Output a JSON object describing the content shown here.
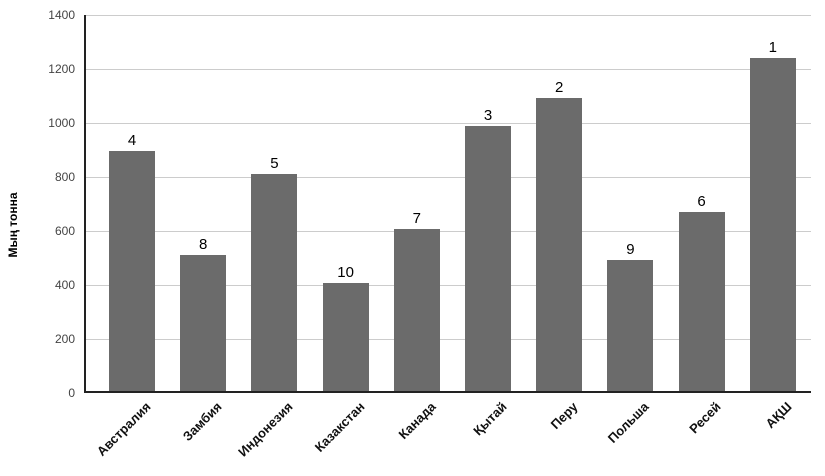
{
  "chart_data": {
    "type": "bar",
    "title": "",
    "xlabel": "",
    "ylabel": "Мың тонна",
    "categories": [
      "Австралия",
      "Замбия",
      "Индонезия",
      "Казакстан",
      "Канада",
      "Қытай",
      "Перу",
      "Польша",
      "Ресей",
      "АҚШ"
    ],
    "values": [
      890,
      505,
      805,
      400,
      600,
      980,
      1085,
      485,
      665,
      1235
    ],
    "point_labels": [
      "4",
      "8",
      "5",
      "10",
      "7",
      "3",
      "2",
      "9",
      "6",
      "1"
    ],
    "ylim": [
      0,
      1400
    ],
    "yticks": [
      0,
      200,
      400,
      600,
      800,
      1000,
      1200,
      1400
    ],
    "grid": true,
    "legend": "none",
    "colors": {
      "bar": "#6b6b6b",
      "gridline": "#cccccc",
      "axis": "#222222",
      "tick_text": "#444444",
      "category_text": "#111111",
      "point_label_text": "#000000",
      "background": "#ffffff"
    }
  }
}
